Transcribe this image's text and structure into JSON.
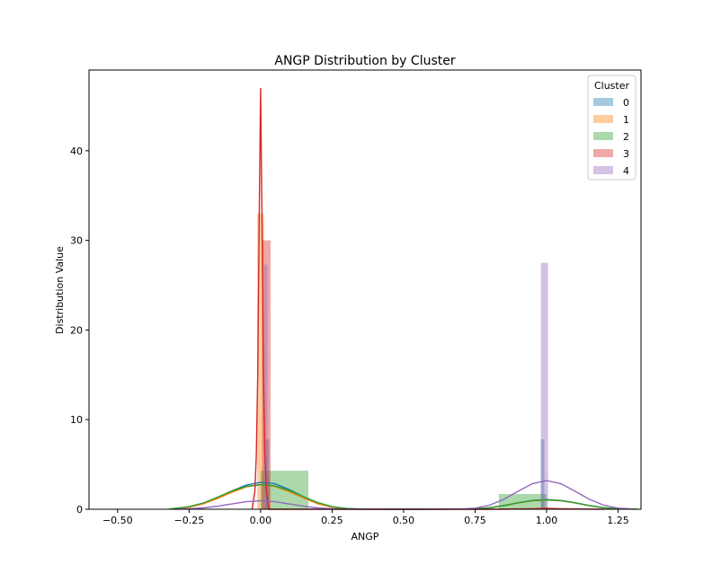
{
  "chart_data": {
    "type": "histogram_kde",
    "title": "ANGP Distribution by Cluster",
    "xlabel": "ANGP",
    "ylabel": "Distribution Value",
    "xlim": [
      -0.6,
      1.33
    ],
    "ylim": [
      0,
      49
    ],
    "xticks": [
      -0.5,
      -0.25,
      0.0,
      0.25,
      0.5,
      0.75,
      1.0,
      1.25
    ],
    "xtick_labels": [
      "−0.50",
      "−0.25",
      "0.00",
      "0.25",
      "0.50",
      "0.75",
      "1.00",
      "1.25"
    ],
    "yticks": [
      0,
      10,
      20,
      30,
      40
    ],
    "ytick_labels": [
      "0",
      "10",
      "20",
      "30",
      "40"
    ],
    "grid": false,
    "legend": {
      "title": "Cluster",
      "placement": "top-right"
    },
    "series": [
      {
        "name": "0",
        "color": "#1f77b4",
        "bars": [
          {
            "x0": 0.018,
            "x1": 0.03,
            "height": 7.8
          },
          {
            "x0": 0.98,
            "x1": 0.992,
            "height": 7.8
          }
        ],
        "kde": [
          [
            -0.3,
            0.05
          ],
          [
            -0.25,
            0.25
          ],
          [
            -0.2,
            0.65
          ],
          [
            -0.15,
            1.3
          ],
          [
            -0.1,
            2.05
          ],
          [
            -0.05,
            2.7
          ],
          [
            0.0,
            3.0
          ],
          [
            0.05,
            2.85
          ],
          [
            0.1,
            2.2
          ],
          [
            0.15,
            1.4
          ],
          [
            0.2,
            0.7
          ],
          [
            0.25,
            0.28
          ],
          [
            0.3,
            0.08
          ],
          [
            0.35,
            0.02
          ],
          [
            0.5,
            0.0
          ],
          [
            0.7,
            0.02
          ],
          [
            0.75,
            0.06
          ],
          [
            0.8,
            0.18
          ],
          [
            0.85,
            0.42
          ],
          [
            0.9,
            0.72
          ],
          [
            0.95,
            0.98
          ],
          [
            1.0,
            1.08
          ],
          [
            1.05,
            0.98
          ],
          [
            1.1,
            0.72
          ],
          [
            1.15,
            0.42
          ],
          [
            1.2,
            0.18
          ],
          [
            1.25,
            0.06
          ],
          [
            1.3,
            0.02
          ]
        ]
      },
      {
        "name": "1",
        "color": "#ff7f0e",
        "bars": [
          {
            "x0": -0.012,
            "x1": 0.012,
            "height": 33.0
          }
        ],
        "kde": [
          [
            -0.3,
            0.04
          ],
          [
            -0.25,
            0.22
          ],
          [
            -0.2,
            0.6
          ],
          [
            -0.15,
            1.2
          ],
          [
            -0.1,
            1.9
          ],
          [
            -0.05,
            2.5
          ],
          [
            0.0,
            2.75
          ],
          [
            0.05,
            2.55
          ],
          [
            0.1,
            1.95
          ],
          [
            0.15,
            1.25
          ],
          [
            0.2,
            0.6
          ],
          [
            0.25,
            0.22
          ],
          [
            0.3,
            0.06
          ],
          [
            0.35,
            0.01
          ],
          [
            0.5,
            0.0
          ],
          [
            0.7,
            0.02
          ],
          [
            0.75,
            0.05
          ],
          [
            0.8,
            0.16
          ],
          [
            0.85,
            0.4
          ],
          [
            0.9,
            0.7
          ],
          [
            0.95,
            0.94
          ],
          [
            1.0,
            1.02
          ],
          [
            1.05,
            0.94
          ],
          [
            1.1,
            0.7
          ],
          [
            1.15,
            0.4
          ],
          [
            1.2,
            0.16
          ],
          [
            1.25,
            0.05
          ],
          [
            1.3,
            0.02
          ]
        ]
      },
      {
        "name": "2",
        "color": "#2ca02c",
        "bars": [
          {
            "x0": 0.0,
            "x1": 0.167,
            "height": 4.3
          },
          {
            "x0": 0.833,
            "x1": 1.0,
            "height": 1.7
          }
        ],
        "kde": [
          [
            -0.32,
            0.02
          ],
          [
            -0.25,
            0.3
          ],
          [
            -0.2,
            0.7
          ],
          [
            -0.15,
            1.35
          ],
          [
            -0.1,
            2.05
          ],
          [
            -0.05,
            2.55
          ],
          [
            0.0,
            2.75
          ],
          [
            0.05,
            2.6
          ],
          [
            0.1,
            2.1
          ],
          [
            0.15,
            1.4
          ],
          [
            0.2,
            0.75
          ],
          [
            0.25,
            0.3
          ],
          [
            0.3,
            0.09
          ],
          [
            0.35,
            0.02
          ],
          [
            0.5,
            0.0
          ],
          [
            0.7,
            0.02
          ],
          [
            0.75,
            0.05
          ],
          [
            0.8,
            0.16
          ],
          [
            0.85,
            0.4
          ],
          [
            0.9,
            0.72
          ],
          [
            0.95,
            0.96
          ],
          [
            1.0,
            1.05
          ],
          [
            1.05,
            0.96
          ],
          [
            1.1,
            0.72
          ],
          [
            1.15,
            0.4
          ],
          [
            1.2,
            0.16
          ],
          [
            1.25,
            0.05
          ],
          [
            1.32,
            0.01
          ]
        ]
      },
      {
        "name": "3",
        "color": "#d62728",
        "bars": [
          {
            "x0": 0.005,
            "x1": 0.035,
            "height": 30.0
          }
        ],
        "kde": [
          [
            -0.03,
            0.0
          ],
          [
            -0.02,
            2.0
          ],
          [
            -0.015,
            6.0
          ],
          [
            -0.01,
            15.0
          ],
          [
            -0.005,
            32.0
          ],
          [
            0.0,
            47.0
          ],
          [
            0.005,
            32.0
          ],
          [
            0.01,
            15.0
          ],
          [
            0.015,
            6.0
          ],
          [
            0.02,
            2.0
          ],
          [
            0.03,
            0.0
          ],
          [
            0.8,
            0.0
          ],
          [
            0.95,
            0.05
          ],
          [
            1.0,
            0.1
          ],
          [
            1.05,
            0.05
          ],
          [
            1.2,
            0.0
          ]
        ]
      },
      {
        "name": "4",
        "color": "#9467bd",
        "bars": [
          {
            "x0": 0.012,
            "x1": 0.024,
            "height": 27.3
          },
          {
            "x0": 0.98,
            "x1": 1.005,
            "height": 27.5
          }
        ],
        "kde": [
          [
            -0.3,
            0.0
          ],
          [
            -0.25,
            0.05
          ],
          [
            -0.2,
            0.15
          ],
          [
            -0.15,
            0.35
          ],
          [
            -0.1,
            0.6
          ],
          [
            -0.05,
            0.85
          ],
          [
            0.0,
            0.95
          ],
          [
            0.05,
            0.85
          ],
          [
            0.1,
            0.6
          ],
          [
            0.15,
            0.35
          ],
          [
            0.2,
            0.15
          ],
          [
            0.25,
            0.05
          ],
          [
            0.3,
            0.01
          ],
          [
            0.5,
            0.0
          ],
          [
            0.7,
            0.03
          ],
          [
            0.75,
            0.12
          ],
          [
            0.8,
            0.45
          ],
          [
            0.85,
            1.1
          ],
          [
            0.9,
            2.0
          ],
          [
            0.95,
            2.85
          ],
          [
            1.0,
            3.2
          ],
          [
            1.05,
            2.85
          ],
          [
            1.1,
            2.0
          ],
          [
            1.15,
            1.1
          ],
          [
            1.2,
            0.45
          ],
          [
            1.25,
            0.12
          ],
          [
            1.3,
            0.03
          ]
        ]
      }
    ]
  }
}
